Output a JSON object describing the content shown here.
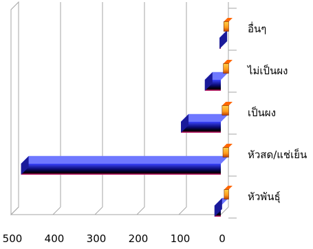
{
  "chart_data": {
    "type": "bar",
    "orientation": "horizontal",
    "x_reversed": true,
    "categories": [
      "อื่นๆ",
      "ไม่เป็นผง",
      "เป็นผง",
      "หัวสด/แช่เย็น",
      "หัวพันธุ์"
    ],
    "series": [
      {
        "values": [
          3,
          38,
          95,
          476,
          15
        ]
      },
      {
        "values": [
          2,
          3,
          6,
          4,
          1
        ]
      }
    ],
    "xlim": [
      0,
      500
    ],
    "x_ticks": [
      500,
      400,
      300,
      200,
      100,
      0
    ],
    "x_tick_labels": [
      "500",
      "400",
      "300",
      "200",
      "100",
      "0"
    ],
    "grid": true,
    "legend": "none",
    "colors": {
      "bar_top": "#3a44ff",
      "bar_mid": "#0a0a70",
      "bar_bottom": "#000000",
      "bar_edge": "#e0207a",
      "small_front": "#ff9a1a",
      "small_top": "#ff6600",
      "small_side": "#c04000",
      "grid": "#a6a6a6"
    }
  }
}
